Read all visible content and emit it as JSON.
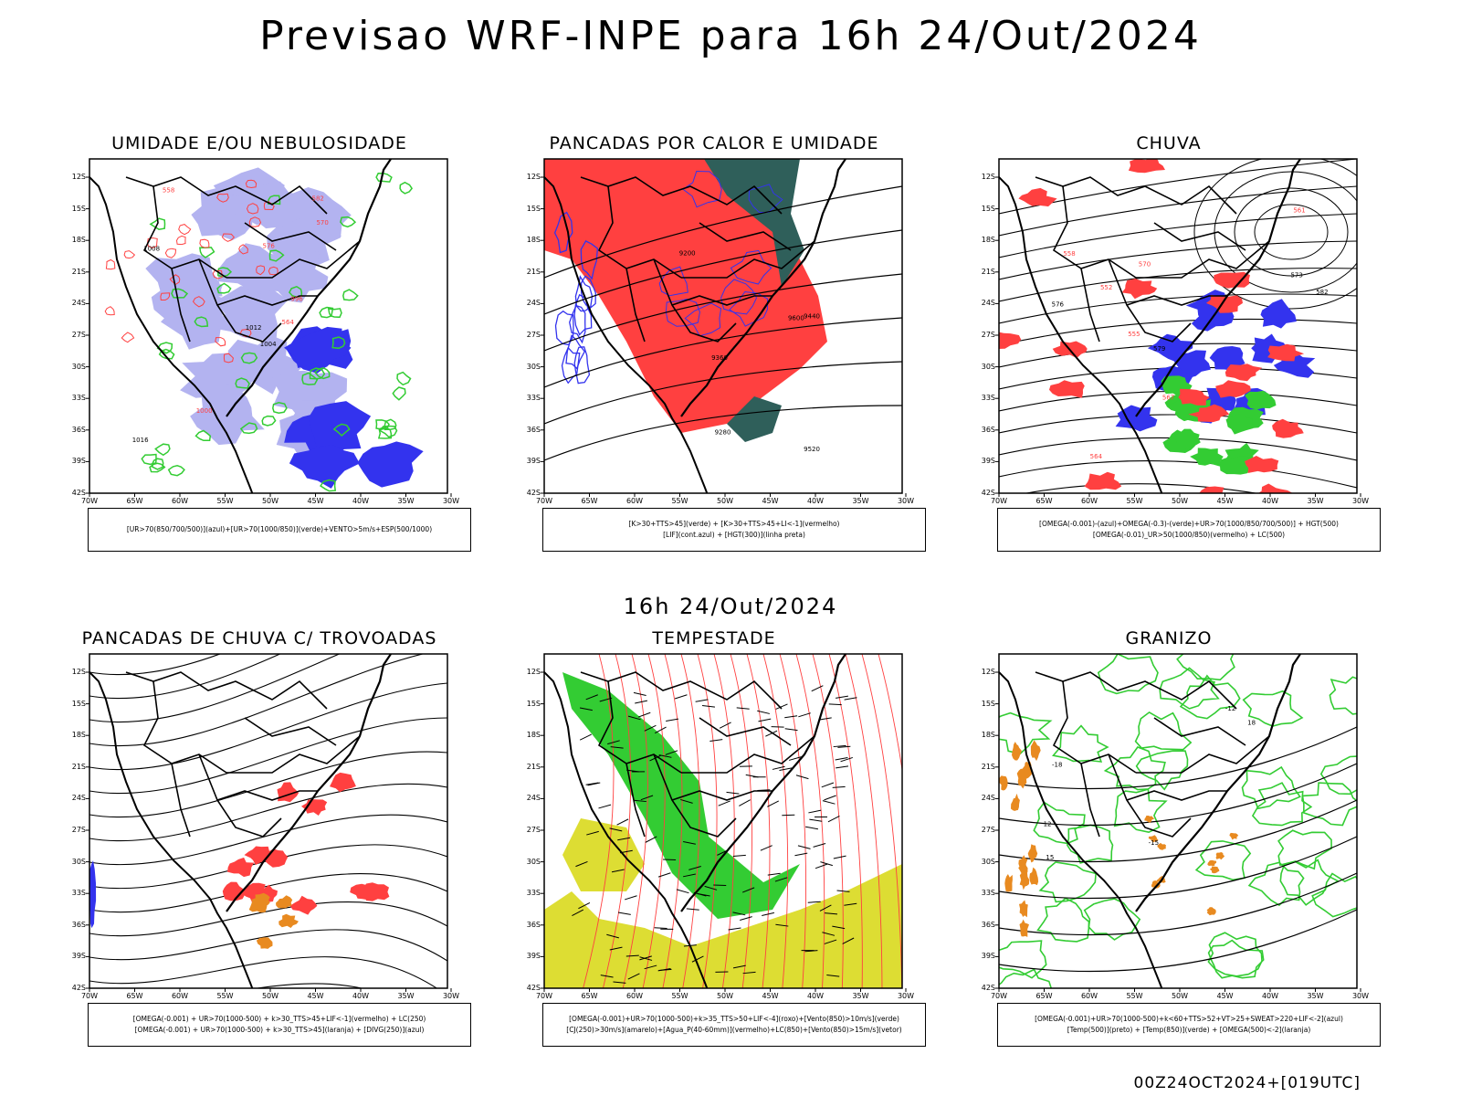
{
  "title": "Previsao WRF-INPE  para 16h 24/Out/2024",
  "mid_title": "16h 24/Out/2024",
  "footer": "00Z24OCT2024+[019UTC]",
  "axes": {
    "lat_labels": [
      "12S",
      "15S",
      "18S",
      "21S",
      "24S",
      "27S",
      "30S",
      "33S",
      "36S",
      "39S",
      "42S"
    ],
    "lon_labels": [
      "70W",
      "65W",
      "60W",
      "55W",
      "50W",
      "45W",
      "40W",
      "35W",
      "30W"
    ]
  },
  "colors": {
    "blue_light": "#b3b3f0",
    "blue": "#3333ee",
    "green": "#33cc33",
    "red": "#ff4040",
    "dark_teal": "#2f5f5a",
    "yellow": "#dddd33",
    "orange": "#e88a20"
  },
  "panels": [
    {
      "title": "UMIDADE E/OU NEBULOSIDADE",
      "legend": [
        "[UR>70(850/700/500)](azul)+[UR>70(1000/850)](verde)+VENTO>5m/s+ESP(500/1000)"
      ],
      "contour_labels": [
        "1004",
        "1008",
        "1012",
        "1016",
        "996",
        "1000",
        "582",
        "576",
        "570",
        "564",
        "558"
      ]
    },
    {
      "title": "PANCADAS POR CALOR E UMIDADE",
      "legend": [
        "[K>30+TTS>45](verde)  +  [K>30+TTS>45+LI<-1](vermelho)",
        "[LIF](cont.azul)  +  [HGT(300)](linha preta)"
      ],
      "contour_labels": [
        "9600",
        "9520",
        "9440",
        "9360",
        "9280",
        "9200"
      ]
    },
    {
      "title": "CHUVA",
      "legend": [
        "[OMEGA(-0.001)-(azul)+OMEGA(-0.3)-(verde)+UR>70(1000/850/700/500)]  +  HGT(500)",
        "[OMEGA(-0.01)_UR>50(1000/850)(vermelho)  +  LC(500)"
      ],
      "contour_labels": [
        "582",
        "579",
        "576",
        "573",
        "570",
        "567",
        "564",
        "561",
        "558",
        "555",
        "552"
      ]
    },
    {
      "title": "PANCADAS DE CHUVA C/ TROVOADAS",
      "legend": [
        "[OMEGA(-0.001)  +  UR>70(1000-500)  +  k>30_TTS>45+LIF<-1](vermelho)  +  LC(250)",
        "[OMEGA(-0.001)  +  UR>70(1000-500)  +  k>30_TTS>45](laranja)  +  [DIVG(250)](azul)"
      ],
      "contour_labels": []
    },
    {
      "title": "TEMPESTADE",
      "legend": [
        "[OMEGA(-0.001)+UR>70(1000-500)+k>35_TTS>50+LIF<-4](roxo)+[Vento(850)>10m/s](verde)",
        "[CJ(250)>30m/s](amarelo)+[Agua_P(40-60mm)](vermelho)+LC(850)+[Vento(850)>15m/s](vetor)"
      ],
      "contour_labels": []
    },
    {
      "title": "GRANIZO",
      "legend": [
        "[OMEGA(-0.001)+UR>70(1000-500)+k<60+TTS>52+VT>25+SWEAT>220+LIF<-2](azul)",
        "[Temp(500)](preto)  +  [Temp(850)](verde)  +  [OMEGA(500)<-2](laranja)"
      ],
      "contour_labels": [
        "-12",
        "-15",
        "-18",
        "12",
        "15",
        "18"
      ]
    }
  ]
}
